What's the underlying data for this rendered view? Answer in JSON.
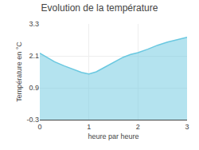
{
  "chart_data": {
    "type": "area",
    "title": "Evolution de la température",
    "x_label": "heure par heure",
    "y_label": "Température en °C",
    "x": [
      0,
      0.15,
      0.3,
      0.5,
      0.7,
      0.85,
      1.0,
      1.15,
      1.3,
      1.5,
      1.7,
      1.85,
      2.0,
      2.2,
      2.4,
      2.6,
      2.8,
      3.0
    ],
    "values": [
      2.2,
      2.05,
      1.88,
      1.72,
      1.58,
      1.48,
      1.42,
      1.5,
      1.65,
      1.85,
      2.05,
      2.15,
      2.22,
      2.35,
      2.5,
      2.62,
      2.72,
      2.8
    ],
    "color": "#6ac8e0",
    "xlim": [
      0,
      3
    ],
    "ylim": [
      -0.3,
      3.3
    ],
    "xticks": [
      0,
      1,
      2,
      3
    ],
    "yticks": [
      -0.3,
      0.9,
      2.1,
      3.3
    ],
    "grid": true
  }
}
